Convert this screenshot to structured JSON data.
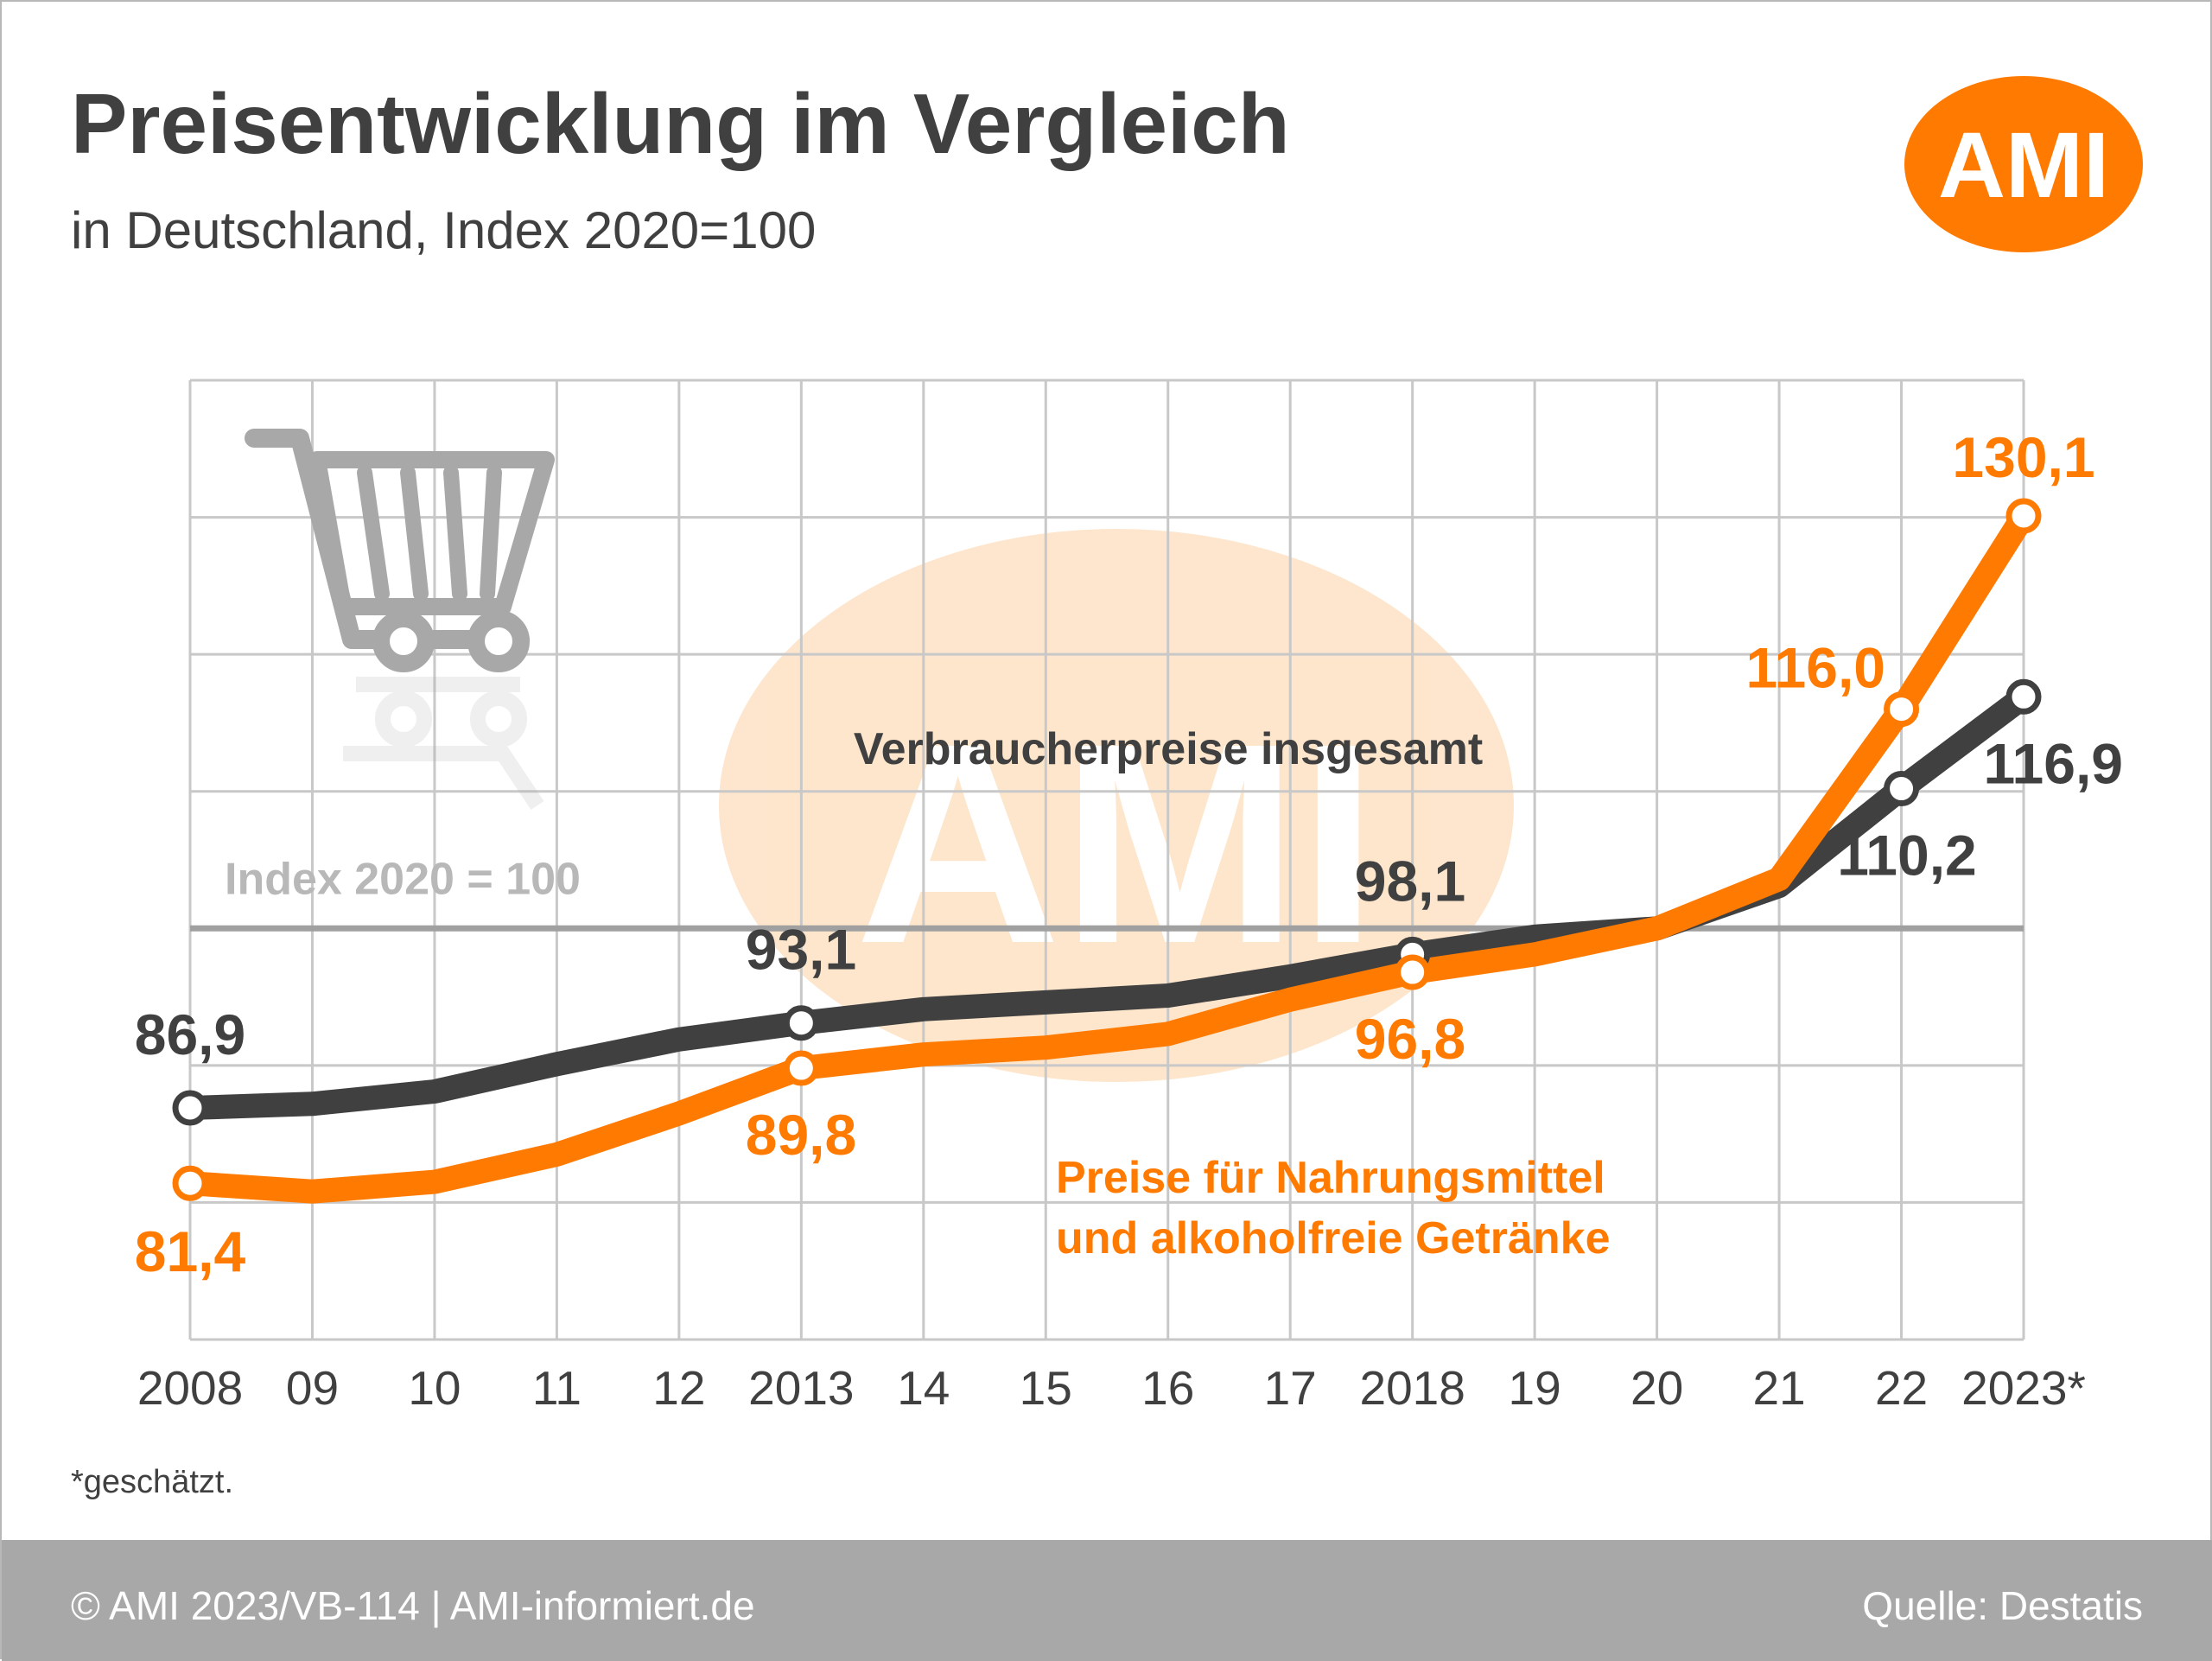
{
  "title": "Preisentwicklung im Vergleich",
  "subtitle": "in Deutschland, Index 2020=100",
  "logo_text": "AMI",
  "watermark_text": "AMI",
  "footnote": "*geschätzt.",
  "footer": {
    "left": "© AMI 2023/VB-114 | AMI-informiert.de",
    "right": "Quelle: Destatis"
  },
  "colors": {
    "orange": "#ff7a00",
    "dark": "#404040",
    "grid": "#c8c8c8",
    "footer_bg": "#a8a8a8"
  },
  "chart_data": {
    "type": "line",
    "x": [
      "2008",
      "09",
      "10",
      "11",
      "12",
      "2013",
      "14",
      "15",
      "16",
      "17",
      "2018",
      "19",
      "20",
      "21",
      "22",
      "2023*"
    ],
    "ylim": [
      70,
      140
    ],
    "reference_line": {
      "value": 100,
      "label": "Index 2020 = 100"
    },
    "grid": true,
    "series": [
      {
        "name": "Verbraucherpreise insgesamt",
        "color": "#404040",
        "values": [
          86.9,
          87.2,
          88.1,
          90.1,
          91.9,
          93.1,
          94.1,
          94.6,
          95.1,
          96.5,
          98.1,
          99.4,
          100.0,
          103.1,
          110.2,
          116.9
        ],
        "marked": [
          0,
          5,
          10,
          14,
          15
        ],
        "labels": [
          {
            "index": 0,
            "text": "86,9"
          },
          {
            "index": 5,
            "text": "93,1"
          },
          {
            "index": 10,
            "text": "98,1"
          },
          {
            "index": 14,
            "text": "110,2"
          },
          {
            "index": 15,
            "text": "116,9"
          }
        ]
      },
      {
        "name": "Preise für Nahrungsmittel und alkoholfreie Getränke",
        "name_lines": [
          "Preise für Nahrungsmittel",
          "und alkoholfreie Getränke"
        ],
        "color": "#ff7a00",
        "values": [
          81.4,
          80.8,
          81.5,
          83.5,
          86.5,
          89.8,
          90.8,
          91.3,
          92.3,
          94.8,
          96.8,
          98.1,
          100.0,
          103.6,
          116.0,
          130.1
        ],
        "marked": [
          0,
          5,
          10,
          14,
          15
        ],
        "labels": [
          {
            "index": 0,
            "text": "81,4"
          },
          {
            "index": 5,
            "text": "89,8"
          },
          {
            "index": 10,
            "text": "96,8"
          },
          {
            "index": 14,
            "text": "116,0"
          },
          {
            "index": 15,
            "text": "130,1"
          }
        ]
      }
    ]
  }
}
